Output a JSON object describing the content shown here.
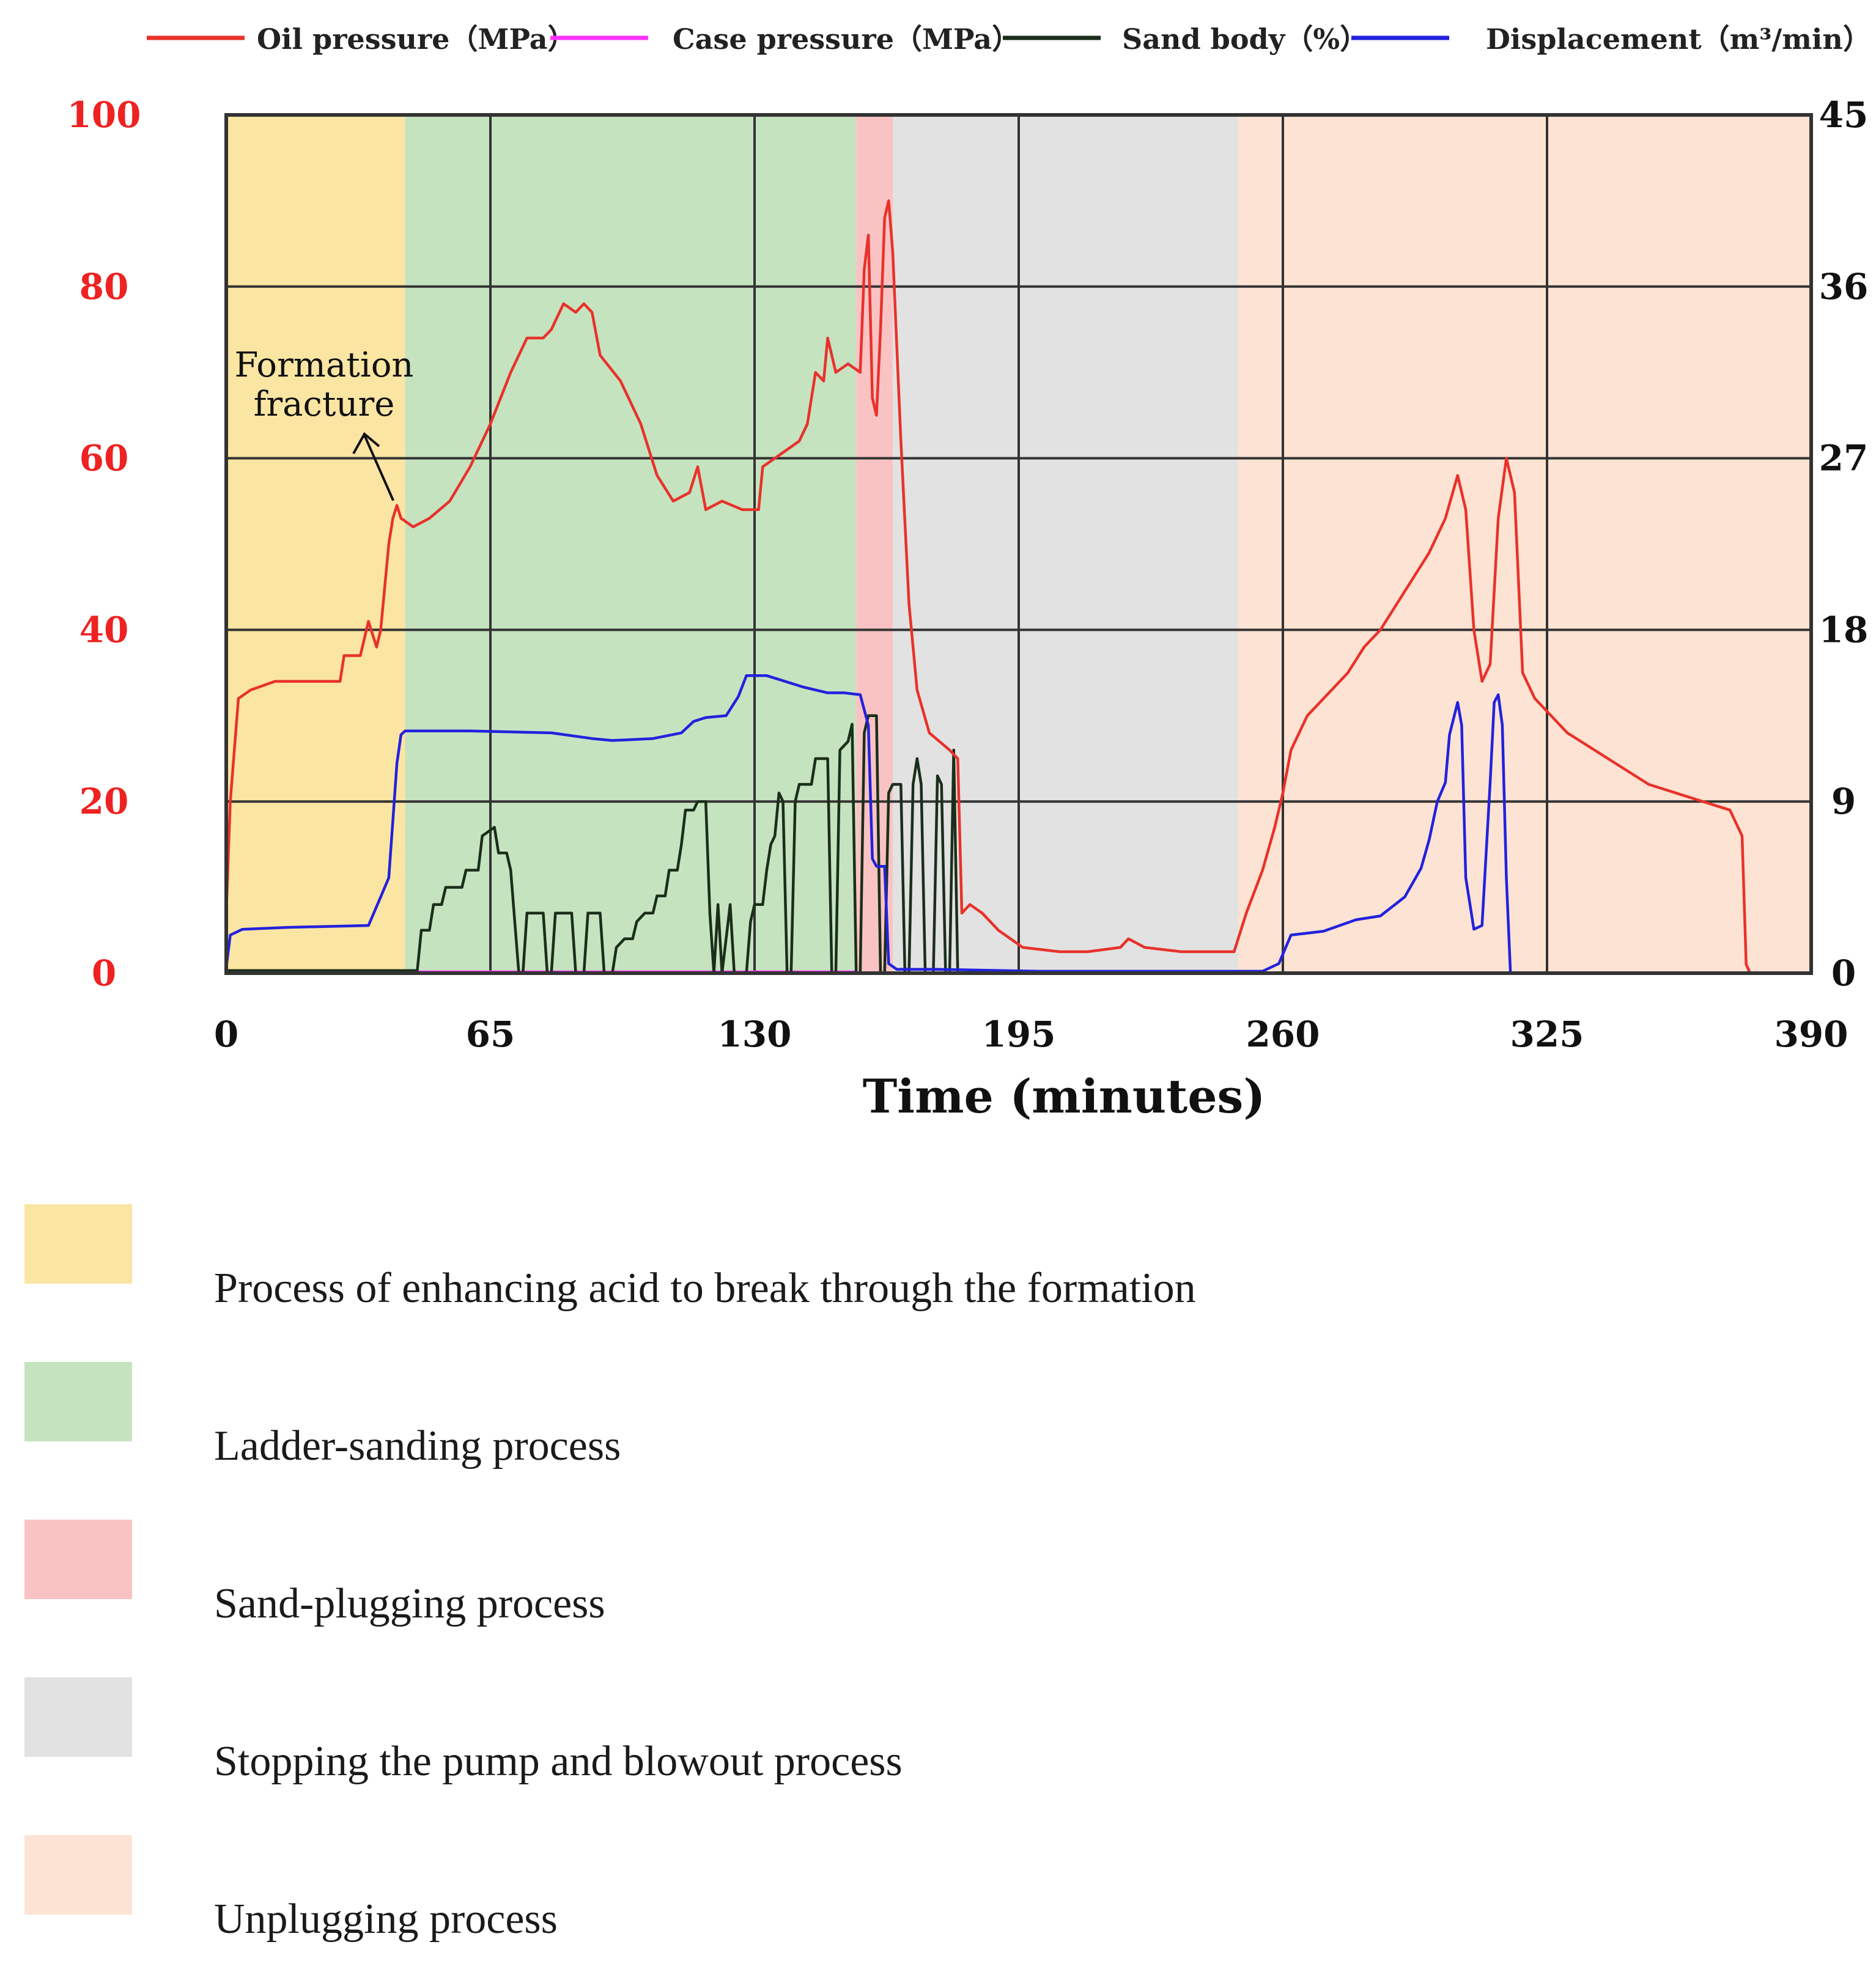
{
  "chart_data": {
    "type": "line",
    "legend": [
      {
        "name": "Oil pressure（MPa）",
        "color": "#e8322b"
      },
      {
        "name": "Case pressure（MPa）",
        "color": "#ff33ff"
      },
      {
        "name": "Sand body（%）",
        "color": "#1a2e1a"
      },
      {
        "name": "Displacement（m³/min）",
        "color": "#2222dd"
      }
    ],
    "xlabel": "Time (minutes)",
    "x_ticks": [
      0,
      65,
      130,
      195,
      260,
      325,
      390
    ],
    "xlim": [
      0,
      390
    ],
    "y_left_ticks": [
      0,
      20,
      40,
      60,
      80,
      100
    ],
    "y_left_lim": [
      0,
      100
    ],
    "y_right_ticks": [
      0,
      9,
      18,
      27,
      36,
      45
    ],
    "y_right_lim": [
      0,
      45
    ],
    "annotation": {
      "text": [
        "Formation",
        "fracture"
      ],
      "x": 42,
      "y": 54.5
    },
    "phases": [
      {
        "name": "Process of enhancing acid to break through the formation",
        "start": 0,
        "end": 44,
        "color": "#fbe5a3"
      },
      {
        "name": "Ladder-sanding process",
        "start": 44,
        "end": 155,
        "color": "#c6e3c0"
      },
      {
        "name": "Sand-plugging process",
        "start": 155,
        "end": 164,
        "color": "#f9c3c3"
      },
      {
        "name": "Stopping the pump and blowout process",
        "start": 164,
        "end": 249,
        "color": "#e2e2e2"
      },
      {
        "name": "Unplugging process",
        "start": 249,
        "end": 390,
        "color": "#fde3d3"
      }
    ],
    "series": [
      {
        "name": "Oil pressure",
        "axis": "left",
        "color": "#e8322b",
        "points": [
          [
            0,
            7
          ],
          [
            1,
            20
          ],
          [
            3,
            32
          ],
          [
            6,
            33
          ],
          [
            12,
            34
          ],
          [
            20,
            34
          ],
          [
            28,
            34
          ],
          [
            29,
            37
          ],
          [
            33,
            37
          ],
          [
            35,
            41
          ],
          [
            37,
            38
          ],
          [
            38,
            40
          ],
          [
            40,
            50
          ],
          [
            41,
            53
          ],
          [
            42,
            54.5
          ],
          [
            43,
            53
          ],
          [
            46,
            52
          ],
          [
            50,
            53
          ],
          [
            55,
            55
          ],
          [
            60,
            59
          ],
          [
            65,
            64
          ],
          [
            70,
            70
          ],
          [
            74,
            74
          ],
          [
            78,
            74
          ],
          [
            80,
            75
          ],
          [
            83,
            78
          ],
          [
            86,
            77
          ],
          [
            88,
            78
          ],
          [
            90,
            77
          ],
          [
            92,
            72
          ],
          [
            97,
            69
          ],
          [
            102,
            64
          ],
          [
            106,
            58
          ],
          [
            110,
            55
          ],
          [
            114,
            56
          ],
          [
            116,
            59
          ],
          [
            118,
            54
          ],
          [
            122,
            55
          ],
          [
            127,
            54
          ],
          [
            131,
            54
          ],
          [
            132,
            59
          ],
          [
            135,
            60
          ],
          [
            138,
            61
          ],
          [
            141,
            62
          ],
          [
            143,
            64
          ],
          [
            145,
            70
          ],
          [
            147,
            69
          ],
          [
            148,
            74
          ],
          [
            150,
            70
          ],
          [
            153,
            71
          ],
          [
            156,
            70
          ],
          [
            157,
            82
          ],
          [
            158,
            86
          ],
          [
            159,
            67
          ],
          [
            160,
            65
          ],
          [
            161,
            75
          ],
          [
            162,
            88
          ],
          [
            163,
            90
          ],
          [
            164,
            84
          ],
          [
            166,
            62
          ],
          [
            168,
            43
          ],
          [
            170,
            33
          ],
          [
            173,
            28
          ],
          [
            178,
            26
          ],
          [
            180,
            25
          ],
          [
            181,
            7
          ],
          [
            183,
            8
          ],
          [
            186,
            7
          ],
          [
            190,
            5
          ],
          [
            196,
            3
          ],
          [
            205,
            2.5
          ],
          [
            212,
            2.5
          ],
          [
            220,
            3
          ],
          [
            222,
            4
          ],
          [
            226,
            3
          ],
          [
            235,
            2.5
          ],
          [
            240,
            2.5
          ],
          [
            248,
            2.5
          ],
          [
            251,
            7
          ],
          [
            255,
            12
          ],
          [
            258,
            17
          ],
          [
            260,
            21
          ],
          [
            262,
            26
          ],
          [
            266,
            30
          ],
          [
            272,
            33
          ],
          [
            276,
            35
          ],
          [
            280,
            38
          ],
          [
            284,
            40
          ],
          [
            288,
            43
          ],
          [
            292,
            46
          ],
          [
            296,
            49
          ],
          [
            300,
            53
          ],
          [
            303,
            58
          ],
          [
            305,
            54
          ],
          [
            307,
            40
          ],
          [
            309,
            34
          ],
          [
            311,
            36
          ],
          [
            313,
            53
          ],
          [
            315,
            60
          ],
          [
            317,
            56
          ],
          [
            319,
            35
          ],
          [
            322,
            32
          ],
          [
            330,
            28
          ],
          [
            340,
            25
          ],
          [
            350,
            22
          ],
          [
            360,
            20.5
          ],
          [
            370,
            19
          ],
          [
            373,
            16
          ],
          [
            374,
            1
          ],
          [
            375,
            0
          ]
        ]
      },
      {
        "name": "Case pressure",
        "axis": "left",
        "color": "#ff33ff",
        "points": [
          [
            47,
            0.1
          ],
          [
            130,
            0.1
          ],
          [
            155,
            0.1
          ]
        ]
      },
      {
        "name": "Sand body",
        "axis": "left",
        "color": "#1a2e1a",
        "points": [
          [
            0,
            0.3
          ],
          [
            44,
            0.3
          ],
          [
            47,
            0.3
          ],
          [
            48,
            5
          ],
          [
            50,
            5
          ],
          [
            51,
            8
          ],
          [
            53,
            8
          ],
          [
            54,
            10
          ],
          [
            58,
            10
          ],
          [
            59,
            12
          ],
          [
            62,
            12
          ],
          [
            63,
            16
          ],
          [
            66,
            17
          ],
          [
            67,
            14
          ],
          [
            69,
            14
          ],
          [
            70,
            12
          ],
          [
            72,
            0
          ],
          [
            73,
            0
          ],
          [
            74,
            7
          ],
          [
            78,
            7
          ],
          [
            79,
            0
          ],
          [
            80,
            0
          ],
          [
            81,
            7
          ],
          [
            85,
            7
          ],
          [
            86,
            0
          ],
          [
            88,
            0
          ],
          [
            89,
            7
          ],
          [
            92,
            7
          ],
          [
            93,
            0
          ],
          [
            95,
            0
          ],
          [
            96,
            3
          ],
          [
            98,
            4
          ],
          [
            100,
            4
          ],
          [
            101,
            6
          ],
          [
            103,
            7
          ],
          [
            105,
            7
          ],
          [
            106,
            9
          ],
          [
            108,
            9
          ],
          [
            109,
            12
          ],
          [
            111,
            12
          ],
          [
            112,
            15
          ],
          [
            113,
            19
          ],
          [
            115,
            19
          ],
          [
            116,
            20
          ],
          [
            118,
            20
          ],
          [
            119,
            7
          ],
          [
            120,
            0
          ],
          [
            121,
            8
          ],
          [
            122,
            0
          ],
          [
            124,
            8
          ],
          [
            125,
            0
          ],
          [
            128,
            0
          ],
          [
            129,
            6
          ],
          [
            130,
            8
          ],
          [
            132,
            8
          ],
          [
            133,
            12
          ],
          [
            134,
            15
          ],
          [
            135,
            16
          ],
          [
            136,
            21
          ],
          [
            137,
            20
          ],
          [
            138,
            0
          ],
          [
            139,
            0
          ],
          [
            140,
            20
          ],
          [
            141,
            22
          ],
          [
            144,
            22
          ],
          [
            145,
            25
          ],
          [
            148,
            25
          ],
          [
            149,
            0
          ],
          [
            150,
            0
          ],
          [
            151,
            26
          ],
          [
            153,
            27
          ],
          [
            154,
            29
          ],
          [
            155,
            0
          ],
          [
            156,
            0
          ],
          [
            157,
            28
          ],
          [
            158,
            30
          ],
          [
            160,
            30
          ],
          [
            161,
            0
          ],
          [
            162,
            0
          ],
          [
            163,
            21
          ],
          [
            164,
            22
          ],
          [
            166,
            22
          ],
          [
            167,
            0
          ],
          [
            168,
            0
          ],
          [
            169,
            22
          ],
          [
            170,
            25
          ],
          [
            171,
            22
          ],
          [
            172,
            0
          ],
          [
            174,
            0
          ],
          [
            175,
            23
          ],
          [
            176,
            22
          ],
          [
            177,
            0
          ],
          [
            178,
            0
          ],
          [
            179,
            26
          ],
          [
            180,
            0
          ]
        ]
      },
      {
        "name": "Displacement",
        "axis": "right",
        "color": "#2222dd",
        "points": [
          [
            0,
            0.3
          ],
          [
            1,
            2
          ],
          [
            4,
            2.3
          ],
          [
            15,
            2.4
          ],
          [
            35,
            2.5
          ],
          [
            36,
            3
          ],
          [
            38,
            4
          ],
          [
            40,
            5
          ],
          [
            41,
            8
          ],
          [
            42,
            11
          ],
          [
            43,
            12.5
          ],
          [
            44,
            12.7
          ],
          [
            60,
            12.7
          ],
          [
            80,
            12.6
          ],
          [
            90,
            12.3
          ],
          [
            95,
            12.2
          ],
          [
            105,
            12.3
          ],
          [
            112,
            12.6
          ],
          [
            115,
            13.2
          ],
          [
            118,
            13.4
          ],
          [
            123,
            13.5
          ],
          [
            126,
            14.5
          ],
          [
            128,
            15.6
          ],
          [
            133,
            15.6
          ],
          [
            136,
            15.4
          ],
          [
            142,
            15
          ],
          [
            148,
            14.7
          ],
          [
            152,
            14.7
          ],
          [
            156,
            14.6
          ],
          [
            158,
            13
          ],
          [
            159,
            6
          ],
          [
            160,
            5.6
          ],
          [
            162,
            5.6
          ],
          [
            163,
            0.5
          ],
          [
            165,
            0.2
          ],
          [
            175,
            0.2
          ],
          [
            200,
            0.1
          ],
          [
            255,
            0.1
          ],
          [
            259,
            0.5
          ],
          [
            262,
            2
          ],
          [
            270,
            2.2
          ],
          [
            278,
            2.8
          ],
          [
            284,
            3
          ],
          [
            290,
            4
          ],
          [
            294,
            5.5
          ],
          [
            296,
            7
          ],
          [
            298,
            9
          ],
          [
            300,
            10
          ],
          [
            301,
            12.5
          ],
          [
            303,
            14.2
          ],
          [
            304,
            13
          ],
          [
            305,
            5
          ],
          [
            307,
            2.3
          ],
          [
            309,
            2.5
          ],
          [
            311,
            10
          ],
          [
            312,
            14.2
          ],
          [
            313,
            14.6
          ],
          [
            314,
            13
          ],
          [
            315,
            5
          ],
          [
            316,
            0
          ]
        ]
      }
    ]
  }
}
